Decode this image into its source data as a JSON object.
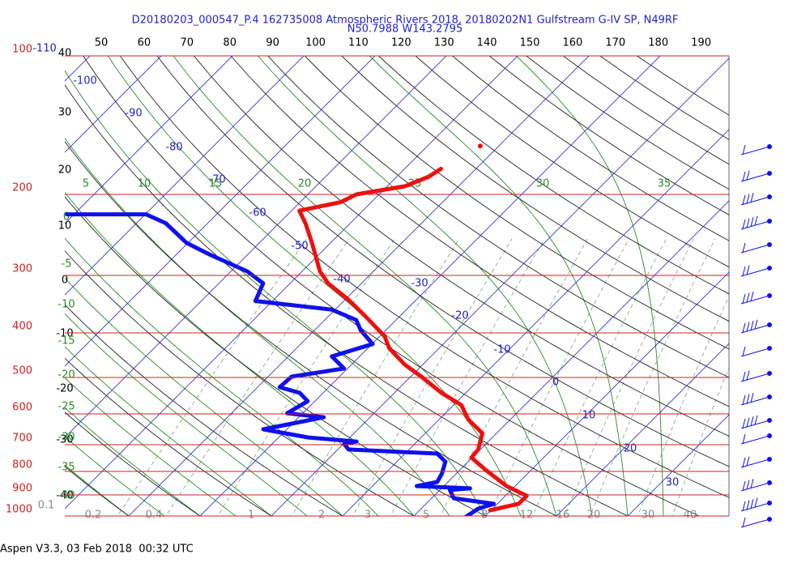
{
  "header": {
    "title": "D20180203_000547_P.4 162735008 Atmospheric Rivers 2018, 20180202N1 Gulfstream G-IV SP, N49RF",
    "subtitle": "N50.7988 W143.2795"
  },
  "pressure_labels": [
    100,
    200,
    300,
    400,
    500,
    600,
    700,
    800,
    900,
    1000
  ],
  "isotherm_labels": [
    -110,
    -100,
    -90,
    -80,
    -70,
    -60,
    -50,
    -40,
    -30,
    -20,
    -10,
    0,
    10,
    20,
    30
  ],
  "theta_top_labels": [
    50,
    60,
    70,
    80,
    90,
    100,
    110,
    120,
    130,
    140,
    150,
    160,
    170,
    180,
    190
  ],
  "theta_left_labels": [
    40,
    30,
    20,
    10,
    0,
    -10,
    -20,
    -30,
    -40
  ],
  "moist_top_labels": [
    5,
    10,
    15,
    20,
    25,
    30,
    35
  ],
  "moist_left_labels": [
    0,
    -5,
    -10,
    -15,
    -20,
    -25,
    -30,
    -35,
    -40
  ],
  "mixing_ratio_labels": [
    0.1,
    0.2,
    0.4,
    1,
    2,
    3,
    5,
    8,
    12,
    16,
    20,
    30,
    40
  ],
  "sounding": {
    "pressure": [
      972,
      941,
      904,
      861,
      794,
      747,
      717,
      661,
      617,
      574,
      540,
      498,
      469,
      432,
      407,
      367,
      339,
      312,
      294,
      255,
      231,
      217,
      208,
      200,
      192,
      183,
      176
    ],
    "temperature": [
      9.9,
      13.0,
      13.0,
      8.8,
      3.6,
      -0.1,
      -0.3,
      -2.0,
      -5.9,
      -8.9,
      -13.4,
      -18.5,
      -22.5,
      -27.0,
      -29.3,
      -35.0,
      -39.5,
      -44.7,
      -47.5,
      -52.6,
      -56.3,
      -58.9,
      -54.3,
      -53.2,
      -47.5,
      -45.5,
      -44.9
    ],
    "dewpoint_pressure": [
      1012,
      964,
      941,
      915,
      878,
      871,
      861,
      843,
      810,
      762,
      732,
      717,
      697,
      689,
      675,
      648,
      635,
      610,
      598,
      563,
      540,
      525,
      498,
      478,
      450,
      423,
      395,
      375,
      356,
      341,
      312,
      294,
      271,
      255,
      231,
      221,
      221,
      221,
      221,
      221,
      221
    ],
    "dewpoint": [
      7.3,
      8.0,
      9.5,
      3.1,
      1.4,
      4.0,
      -3.8,
      -1.5,
      -2.0,
      -3.2,
      -5.5,
      -18.5,
      -19.9,
      -18.5,
      -25.9,
      -33.3,
      -31.0,
      -26.5,
      -32.2,
      -31.0,
      -33.3,
      -36.9,
      -36.7,
      -30.5,
      -33.9,
      -29.9,
      -33.5,
      -35.6,
      -40.5,
      -52.4,
      -53.8,
      -57.7,
      -65.1,
      -70.2,
      -75.9,
      -79.9,
      -83.6,
      -85.0,
      -86.7,
      -88.6,
      -91.0
    ],
    "isolated_point": {
      "pressure": 157,
      "temperature": -42.6
    }
  },
  "footer": "Aspen V3.3, 03 Feb 2018  00:32 UTC"
}
